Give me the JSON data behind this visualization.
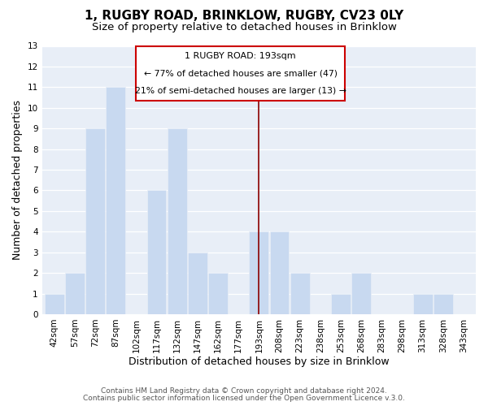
{
  "title": "1, RUGBY ROAD, BRINKLOW, RUGBY, CV23 0LY",
  "subtitle": "Size of property relative to detached houses in Brinklow",
  "xlabel": "Distribution of detached houses by size in Brinklow",
  "ylabel": "Number of detached properties",
  "bar_labels": [
    "42sqm",
    "57sqm",
    "72sqm",
    "87sqm",
    "102sqm",
    "117sqm",
    "132sqm",
    "147sqm",
    "162sqm",
    "177sqm",
    "193sqm",
    "208sqm",
    "223sqm",
    "238sqm",
    "253sqm",
    "268sqm",
    "283sqm",
    "298sqm",
    "313sqm",
    "328sqm",
    "343sqm"
  ],
  "bar_values": [
    1,
    2,
    9,
    11,
    0,
    6,
    9,
    3,
    2,
    0,
    4,
    4,
    2,
    0,
    1,
    2,
    0,
    0,
    1,
    1,
    0
  ],
  "bar_color": "#c8d9f0",
  "highlight_bar_index": 10,
  "highlight_line_color": "#8b0000",
  "ylim": [
    0,
    13
  ],
  "yticks": [
    0,
    1,
    2,
    3,
    4,
    5,
    6,
    7,
    8,
    9,
    10,
    11,
    12,
    13
  ],
  "annotation_title": "1 RUGBY ROAD: 193sqm",
  "annotation_line1": "← 77% of detached houses are smaller (47)",
  "annotation_line2": "21% of semi-detached houses are larger (13) →",
  "annotation_box_color": "#ffffff",
  "annotation_box_edge": "#cc0000",
  "footer_line1": "Contains HM Land Registry data © Crown copyright and database right 2024.",
  "footer_line2": "Contains public sector information licensed under the Open Government Licence v.3.0.",
  "background_color": "#ffffff",
  "plot_bg_color": "#e8eef7",
  "grid_color": "#ffffff",
  "title_fontsize": 11,
  "subtitle_fontsize": 9.5,
  "axis_label_fontsize": 9,
  "tick_fontsize": 7.5,
  "footer_fontsize": 6.5
}
